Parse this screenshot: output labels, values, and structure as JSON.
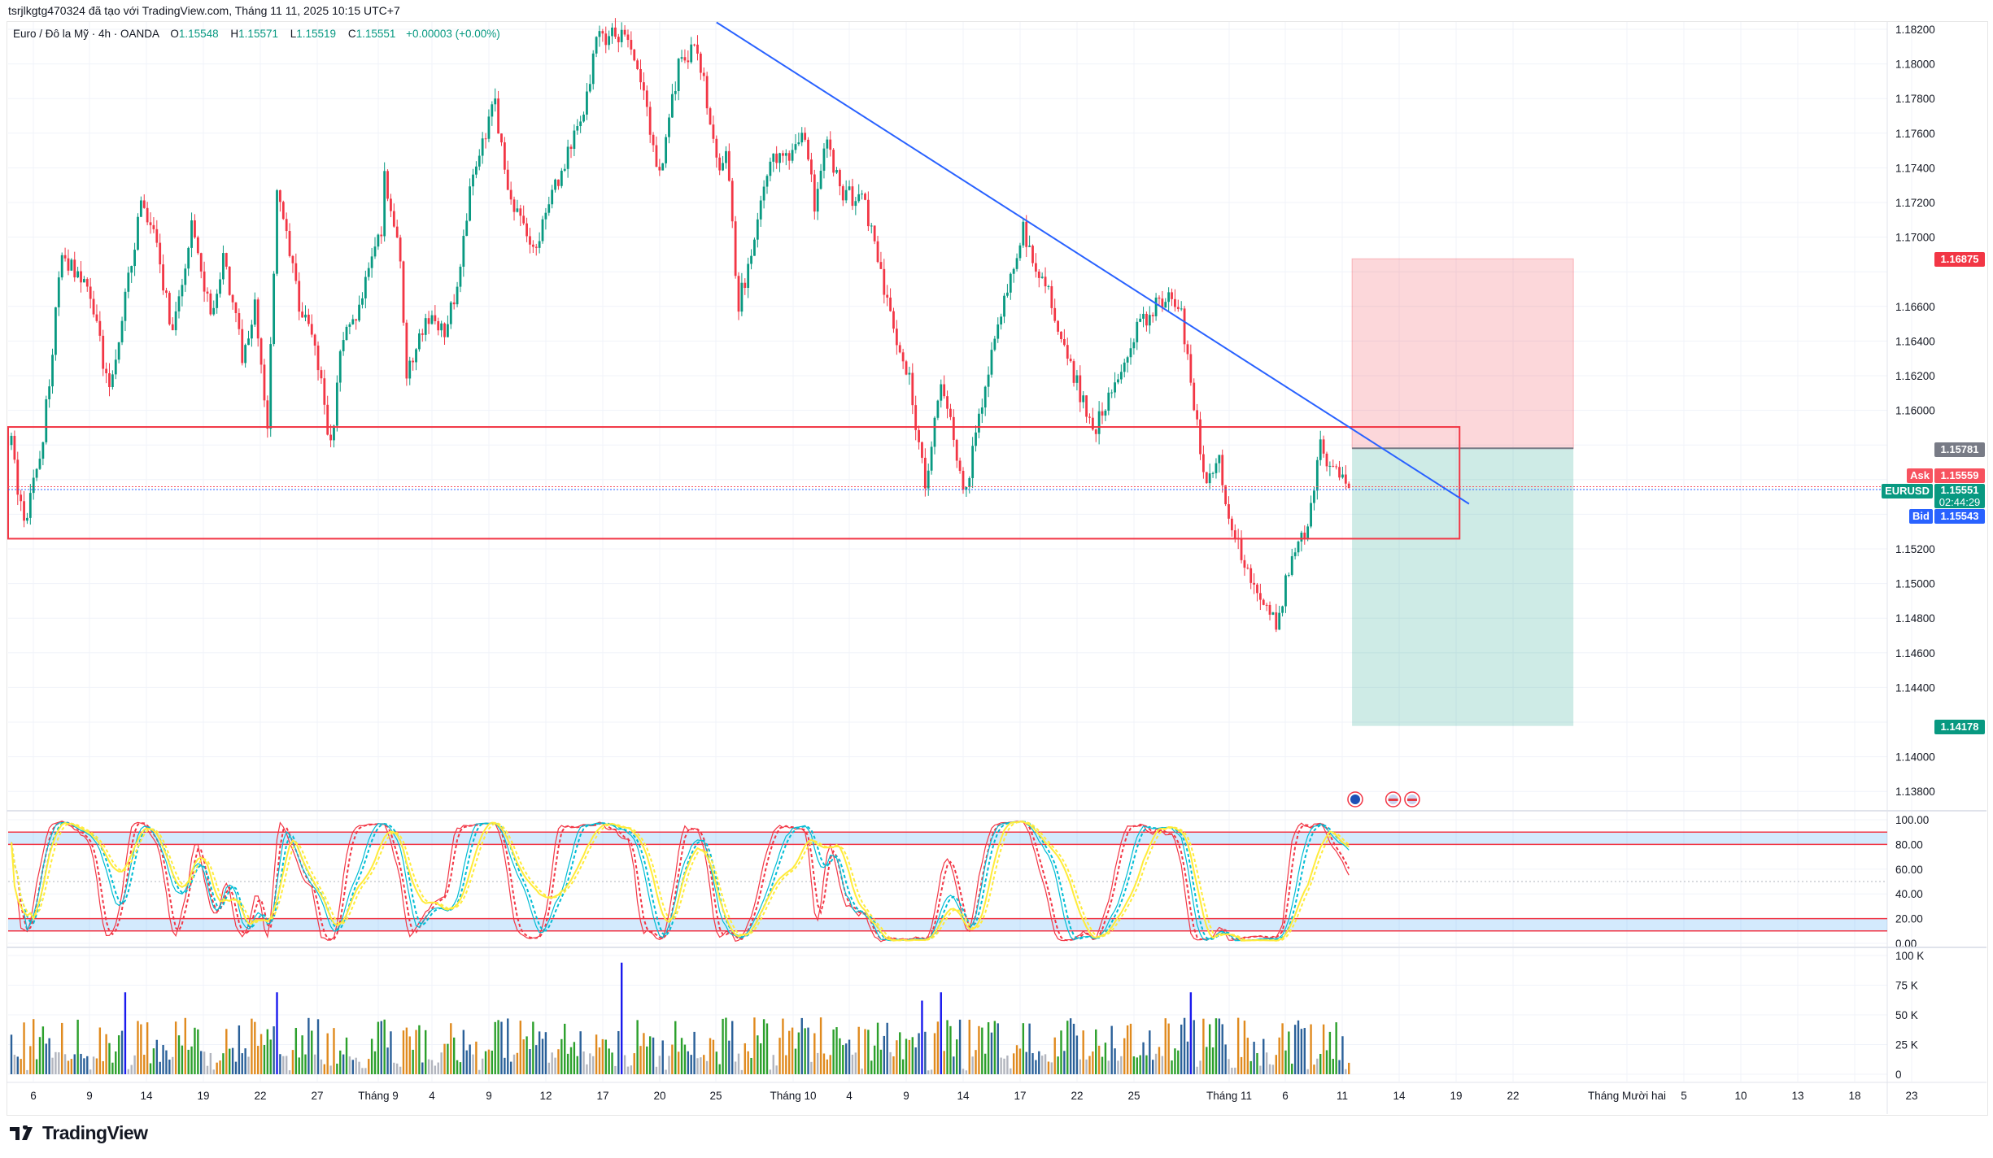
{
  "caption": "tsrjlkgtg470324 đã tạo với TradingView.com, Tháng 11 11, 2025 10:15 UTC+7",
  "legend": {
    "symbol": "Euro / Đô la Mỹ · 4h · OANDA",
    "o_label": "O",
    "o": "1.15548",
    "h_label": "H",
    "h": "1.15571",
    "l_label": "L",
    "l": "1.15519",
    "c_label": "C",
    "c": "1.15551",
    "change": "+0.00003 (+0.00%)"
  },
  "price_tags": {
    "stop": "1.16875",
    "entry": "1.15781",
    "ask_label": "Ask",
    "ask": "1.15559",
    "symbol_label": "EURUSD",
    "last": "1.15551",
    "countdown": "02:44:29",
    "bid_label": "Bid",
    "bid": "1.15543",
    "target": "1.14178"
  },
  "time_axis": [
    "6",
    "9",
    "14",
    "19",
    "22",
    "27",
    "Tháng 9",
    "4",
    "9",
    "12",
    "17",
    "20",
    "25",
    "Tháng 10",
    "4",
    "9",
    "14",
    "17",
    "22",
    "25",
    "Tháng 11",
    "6",
    "11",
    "14",
    "19",
    "22",
    "Tháng Mười hai",
    "5",
    "10",
    "13",
    "18",
    "23"
  ],
  "logo": "TradingView",
  "colors": {
    "up": "#089981",
    "down": "#F23645",
    "trend": "#2962FF",
    "zone": "#F23645",
    "ask": "#F7525F",
    "bid": "#2962FF"
  },
  "chart_data": {
    "type": "candlestick",
    "symbol": "EURUSD",
    "timeframe": "4h",
    "price_ticks": [
      1.182,
      1.18,
      1.178,
      1.176,
      1.174,
      1.172,
      1.17,
      1.168,
      1.166,
      1.164,
      1.162,
      1.16,
      1.158,
      1.156,
      1.154,
      1.152,
      1.15,
      1.148,
      1.146,
      1.144,
      1.142,
      1.14,
      1.138
    ],
    "ylim": [
      1.1367,
      1.1825
    ],
    "approx_close_path": [
      [
        0,
        1.158
      ],
      [
        4,
        1.1532
      ],
      [
        10,
        1.1584
      ],
      [
        16,
        1.169
      ],
      [
        25,
        1.1668
      ],
      [
        31,
        1.161
      ],
      [
        41,
        1.172
      ],
      [
        45,
        1.1701
      ],
      [
        51,
        1.1646
      ],
      [
        57,
        1.1705
      ],
      [
        63,
        1.1654
      ],
      [
        67,
        1.169
      ],
      [
        73,
        1.1632
      ],
      [
        77,
        1.1661
      ],
      [
        81,
        1.1588
      ],
      [
        84,
        1.1727
      ],
      [
        91,
        1.1661
      ],
      [
        95,
        1.1646
      ],
      [
        101,
        1.158
      ],
      [
        105,
        1.1646
      ],
      [
        109,
        1.1654
      ],
      [
        117,
        1.1705
      ],
      [
        118,
        1.1734
      ],
      [
        123,
        1.169
      ],
      [
        125,
        1.1617
      ],
      [
        131,
        1.1654
      ],
      [
        137,
        1.1646
      ],
      [
        141,
        1.1668
      ],
      [
        145,
        1.1727
      ],
      [
        153,
        1.1778
      ],
      [
        157,
        1.1727
      ],
      [
        165,
        1.169
      ],
      [
        173,
        1.1734
      ],
      [
        181,
        1.1771
      ],
      [
        185,
        1.1815
      ],
      [
        193,
        1.1818
      ],
      [
        199,
        1.1793
      ],
      [
        205,
        1.1734
      ],
      [
        211,
        1.18
      ],
      [
        217,
        1.181
      ],
      [
        224,
        1.1734
      ],
      [
        226,
        1.1749
      ],
      [
        230,
        1.1661
      ],
      [
        234,
        1.169
      ],
      [
        240,
        1.1749
      ],
      [
        246,
        1.1742
      ],
      [
        250,
        1.1764
      ],
      [
        254,
        1.172
      ],
      [
        258,
        1.1756
      ],
      [
        262,
        1.1727
      ],
      [
        270,
        1.172
      ],
      [
        278,
        1.1654
      ],
      [
        284,
        1.1617
      ],
      [
        289,
        1.1558
      ],
      [
        294,
        1.1617
      ],
      [
        302,
        1.1551
      ],
      [
        305,
        1.1588
      ],
      [
        310,
        1.1632
      ],
      [
        314,
        1.1661
      ],
      [
        320,
        1.1705
      ],
      [
        324,
        1.1683
      ],
      [
        328,
        1.1668
      ],
      [
        334,
        1.1632
      ],
      [
        338,
        1.161
      ],
      [
        342,
        1.1588
      ],
      [
        350,
        1.1617
      ],
      [
        356,
        1.1646
      ],
      [
        362,
        1.1661
      ],
      [
        366,
        1.1665
      ],
      [
        370,
        1.1654
      ],
      [
        374,
        1.1602
      ],
      [
        378,
        1.1558
      ],
      [
        382,
        1.1573
      ],
      [
        386,
        1.1529
      ],
      [
        390,
        1.1514
      ],
      [
        396,
        1.1485
      ],
      [
        400,
        1.1477
      ],
      [
        406,
        1.1523
      ],
      [
        410,
        1.153
      ],
      [
        414,
        1.158
      ],
      [
        418,
        1.1565
      ],
      [
        423,
        1.15551
      ]
    ],
    "last_price": 1.15551,
    "ask": 1.15559,
    "bid": 1.15543,
    "trendline": {
      "start": [
        223,
        1.1824
      ],
      "end": [
        461,
        1.1546
      ]
    },
    "support_zone": {
      "top": 1.15904,
      "bottom": 1.15259,
      "end_bar": 458
    },
    "position_tool": {
      "stop": 1.16875,
      "entry": 1.15781,
      "target": 1.14178,
      "start_bar": 424,
      "end_bar": 494
    },
    "event_markers": [
      {
        "bar": 425,
        "kind": "EU"
      },
      {
        "bar": 437,
        "kind": "US"
      },
      {
        "bar": 443,
        "kind": "US"
      }
    ],
    "stochastic": {
      "ylim": [
        0,
        100
      ],
      "ticks": [
        "100.00",
        "80.00",
        "60.00",
        "40.00",
        "20.00",
        "0.00"
      ],
      "upper_band": [
        80,
        90
      ],
      "lower_band": [
        10,
        20
      ]
    },
    "volume": {
      "ylim": [
        0,
        100000
      ],
      "ticks": [
        "100 K",
        "75 K",
        "50 K",
        "25 K",
        "0"
      ],
      "spikes": [
        [
          36,
          69000
        ],
        [
          84,
          69000
        ],
        [
          193,
          94000
        ],
        [
          288,
          62000
        ],
        [
          294,
          69000
        ],
        [
          373,
          69000
        ]
      ]
    }
  }
}
